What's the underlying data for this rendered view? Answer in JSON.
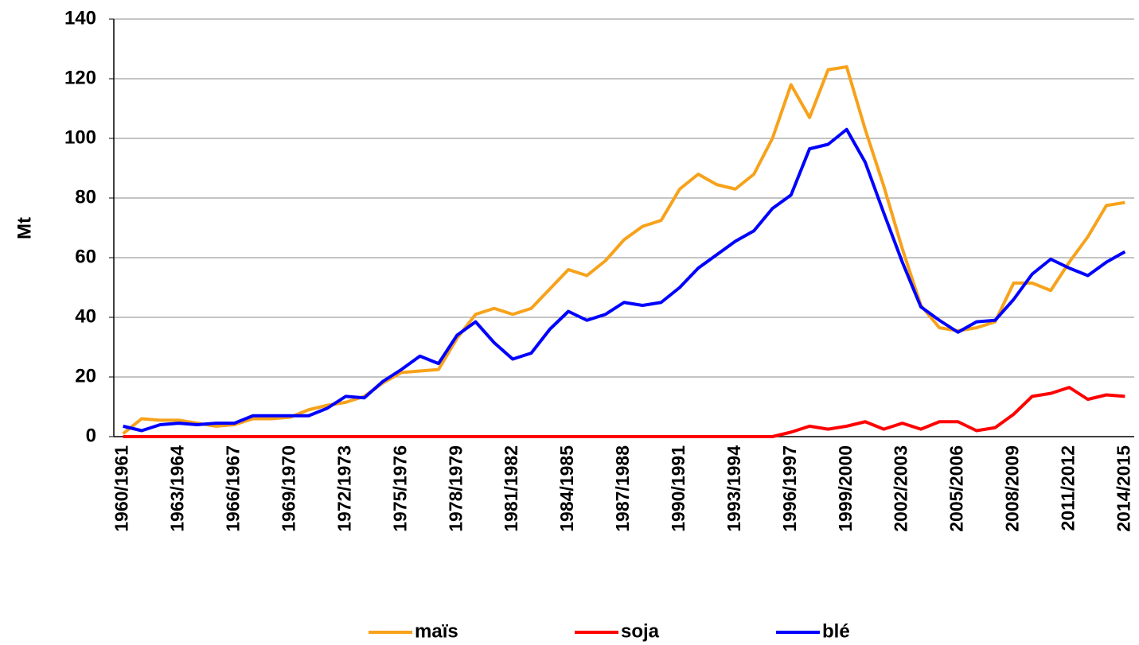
{
  "chart_data": {
    "type": "line",
    "y_label": "Mt",
    "categories": [
      "1960/1961",
      null,
      null,
      "1963/1964",
      null,
      null,
      "1966/1967",
      null,
      null,
      "1969/1970",
      null,
      null,
      "1972/1973",
      null,
      null,
      "1975/1976",
      null,
      null,
      "1978/1979",
      null,
      null,
      "1981/1982",
      null,
      null,
      "1984/1985",
      null,
      null,
      "1987/1988",
      null,
      null,
      "1990/1991",
      null,
      null,
      "1993/1994",
      null,
      null,
      "1996/1997",
      null,
      null,
      "1999/2000",
      null,
      null,
      "2002/2003",
      null,
      null,
      "2005/2006",
      null,
      null,
      "2008/2009",
      null,
      null,
      "2011/2012",
      null,
      null,
      "2014/2015"
    ],
    "series": [
      {
        "name": "maïs",
        "color": "#f7a21b",
        "values": [
          1,
          6,
          5.5,
          5.5,
          4.5,
          3.5,
          4,
          6,
          6,
          6.5,
          9,
          10.5,
          11.5,
          13.5,
          18,
          21.5,
          22,
          22.5,
          33,
          41,
          43,
          41,
          43,
          49.5,
          56,
          54,
          59,
          66,
          70.5,
          72.5,
          83,
          88,
          84.5,
          83,
          88,
          100,
          118,
          107,
          123,
          124,
          103,
          84,
          63,
          44,
          36.5,
          35.5,
          36.5,
          38.5,
          51.5,
          51.5,
          49,
          58.5,
          67,
          77.5,
          78.5
        ]
      },
      {
        "name": "soja",
        "color": "#ff0000",
        "values": [
          0,
          0,
          0,
          0,
          0,
          0,
          0,
          0,
          0,
          0,
          0,
          0,
          0,
          0,
          0,
          0,
          0,
          0,
          0,
          0,
          0,
          0,
          0,
          0,
          0,
          0,
          0,
          0,
          0,
          0,
          0,
          0,
          0,
          0,
          0,
          0,
          1.5,
          3.5,
          2.5,
          3.5,
          5,
          2.5,
          4.5,
          2.5,
          5,
          5,
          2,
          3,
          7.5,
          13.5,
          14.5,
          16.5,
          12.5,
          14,
          13.5
        ]
      },
      {
        "name": "blé",
        "color": "#0000ff",
        "values": [
          3.5,
          2,
          4,
          4.5,
          4,
          4.5,
          4.5,
          7,
          7,
          7,
          7,
          9.5,
          13.5,
          13,
          18.5,
          22.5,
          27,
          24.5,
          34,
          38.5,
          31.5,
          26,
          28,
          36,
          42,
          39,
          41,
          45,
          44,
          45,
          50,
          56.5,
          61,
          65.5,
          69,
          76.5,
          81,
          96.5,
          98,
          103,
          92,
          75,
          58.5,
          43.5,
          39,
          35,
          38.5,
          39,
          46,
          54.5,
          59.5,
          56.5,
          54,
          58.5,
          62
        ]
      }
    ],
    "ylim": [
      0,
      140
    ],
    "yticks": [
      0,
      20,
      40,
      60,
      80,
      100,
      120,
      140
    ],
    "grid": true,
    "legend": "bottom"
  }
}
